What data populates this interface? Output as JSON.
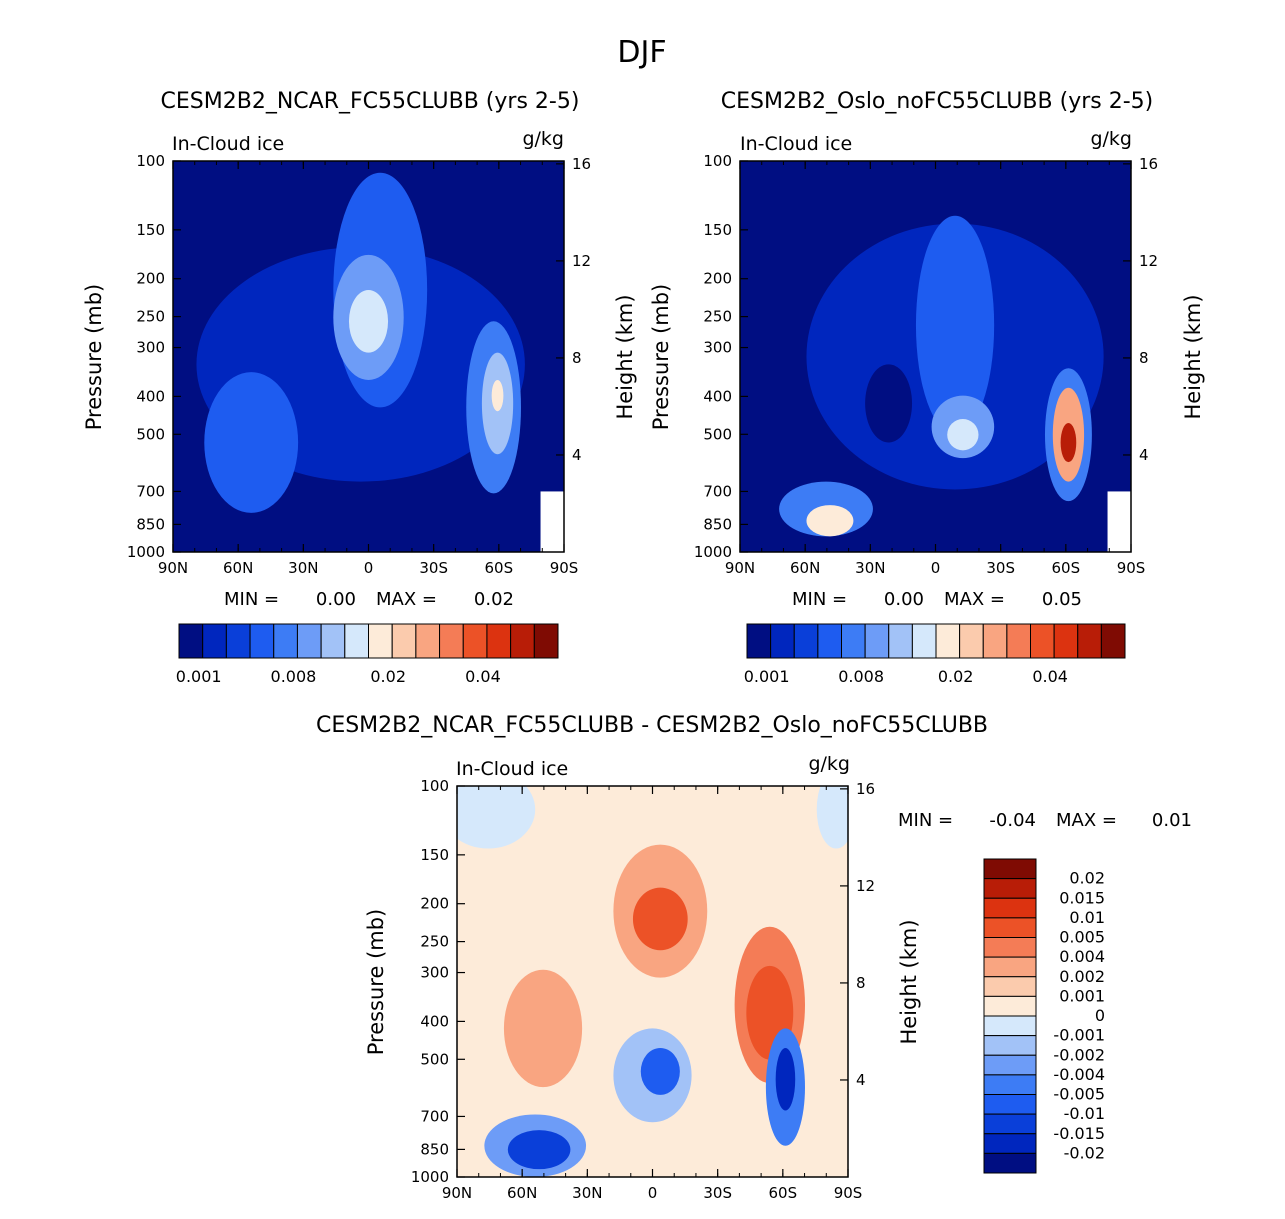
{
  "title": "DJF",
  "chart_data": [
    {
      "type": "heatmap",
      "title": "CESM2B2_NCAR_FC55CLUBB (yrs 2-5)",
      "variable": "In-Cloud ice",
      "units": "g/kg",
      "ylabel": "Pressure (mb)",
      "ylabel_right": "Height (km)",
      "x_ticks": [
        "90N",
        "60N",
        "30N",
        "0",
        "30S",
        "60S",
        "90S"
      ],
      "y_ticks": [
        100,
        150,
        200,
        250,
        300,
        400,
        500,
        700,
        850,
        1000
      ],
      "y_right_ticks": [
        16,
        12,
        8,
        4
      ],
      "stats": {
        "min_label": "MIN =",
        "min": "0.00",
        "max_label": "MAX =",
        "max": "0.02"
      },
      "colorbar": {
        "labels": [
          "0.001",
          "0.008",
          "0.02",
          "0.04"
        ],
        "colors": [
          "#000e82",
          "#0026be",
          "#0a3fd9",
          "#1e5cf0",
          "#3d7cf5",
          "#6d9cf7",
          "#a2c2f7",
          "#d5e8fb",
          "#fdebd9",
          "#fbcbad",
          "#f9a581",
          "#f47c56",
          "#ec5227",
          "#dc3310",
          "#b81d07",
          "#7f0b03"
        ]
      },
      "fields": {
        "background": "#000e82",
        "contours": [
          {
            "name": "outer",
            "cx": 0.48,
            "cy": 0.52,
            "rx": 0.42,
            "ry": 0.3,
            "color": "#0026be"
          },
          {
            "name": "trop-tower",
            "cx": 0.53,
            "cy": 0.33,
            "rx": 0.12,
            "ry": 0.3,
            "color": "#1e5cf0"
          },
          {
            "name": "south-left",
            "cx": 0.2,
            "cy": 0.72,
            "rx": 0.12,
            "ry": 0.18,
            "color": "#1e5cf0"
          },
          {
            "name": "trop-core",
            "cx": 0.5,
            "cy": 0.4,
            "rx": 0.09,
            "ry": 0.16,
            "color": "#6d9cf7"
          },
          {
            "name": "trop-inner",
            "cx": 0.5,
            "cy": 0.41,
            "rx": 0.05,
            "ry": 0.08,
            "color": "#d5e8fb"
          },
          {
            "name": "sh-midlat",
            "cx": 0.82,
            "cy": 0.63,
            "rx": 0.07,
            "ry": 0.22,
            "color": "#3d7cf5"
          },
          {
            "name": "sh-inner",
            "cx": 0.83,
            "cy": 0.62,
            "rx": 0.04,
            "ry": 0.13,
            "color": "#a2c2f7"
          },
          {
            "name": "sh-core",
            "cx": 0.83,
            "cy": 0.6,
            "rx": 0.015,
            "ry": 0.04,
            "color": "#fdebd9"
          }
        ]
      }
    },
    {
      "type": "heatmap",
      "title": "CESM2B2_Oslo_noFC55CLUBB (yrs 2-5)",
      "variable": "In-Cloud ice",
      "units": "g/kg",
      "ylabel": "Pressure (mb)",
      "ylabel_right": "Height (km)",
      "x_ticks": [
        "90N",
        "60N",
        "30N",
        "0",
        "30S",
        "60S",
        "90S"
      ],
      "y_ticks": [
        100,
        150,
        200,
        250,
        300,
        400,
        500,
        700,
        850,
        1000
      ],
      "y_right_ticks": [
        16,
        12,
        8,
        4
      ],
      "stats": {
        "min_label": "MIN =",
        "min": "0.00",
        "max_label": "MAX =",
        "max": "0.05"
      },
      "colorbar": {
        "labels": [
          "0.001",
          "0.008",
          "0.02",
          "0.04"
        ],
        "colors": [
          "#000e82",
          "#0026be",
          "#0a3fd9",
          "#1e5cf0",
          "#3d7cf5",
          "#6d9cf7",
          "#a2c2f7",
          "#d5e8fb",
          "#fdebd9",
          "#fbcbad",
          "#f9a581",
          "#f47c56",
          "#ec5227",
          "#dc3310",
          "#b81d07",
          "#7f0b03"
        ]
      },
      "fields": {
        "background": "#000e82",
        "contours": [
          {
            "name": "outer",
            "cx": 0.55,
            "cy": 0.5,
            "rx": 0.38,
            "ry": 0.34,
            "color": "#0026be"
          },
          {
            "name": "trop",
            "cx": 0.55,
            "cy": 0.42,
            "rx": 0.1,
            "ry": 0.28,
            "color": "#1e5cf0"
          },
          {
            "name": "trop-inner",
            "cx": 0.57,
            "cy": 0.68,
            "rx": 0.08,
            "ry": 0.08,
            "color": "#6d9cf7"
          },
          {
            "name": "trop-core",
            "cx": 0.57,
            "cy": 0.7,
            "rx": 0.04,
            "ry": 0.04,
            "color": "#d5e8fb"
          },
          {
            "name": "nh-low",
            "cx": 0.22,
            "cy": 0.89,
            "rx": 0.12,
            "ry": 0.07,
            "color": "#3d7cf5"
          },
          {
            "name": "nh-low-core",
            "cx": 0.23,
            "cy": 0.92,
            "rx": 0.06,
            "ry": 0.04,
            "color": "#fdebd9"
          },
          {
            "name": "hole",
            "cx": 0.38,
            "cy": 0.62,
            "rx": 0.06,
            "ry": 0.1,
            "color": "#000e82"
          },
          {
            "name": "sh-plume",
            "cx": 0.84,
            "cy": 0.7,
            "rx": 0.06,
            "ry": 0.17,
            "color": "#3d7cf5"
          },
          {
            "name": "sh-plume-2",
            "cx": 0.84,
            "cy": 0.7,
            "rx": 0.04,
            "ry": 0.12,
            "color": "#f9a581"
          },
          {
            "name": "sh-plume-core",
            "cx": 0.84,
            "cy": 0.72,
            "rx": 0.02,
            "ry": 0.05,
            "color": "#b81d07"
          }
        ]
      }
    },
    {
      "type": "heatmap",
      "title": "CESM2B2_NCAR_FC55CLUBB - CESM2B2_Oslo_noFC55CLUBB",
      "variable": "In-Cloud ice",
      "units": "g/kg",
      "ylabel": "Pressure (mb)",
      "ylabel_right": "Height (km)",
      "x_ticks": [
        "90N",
        "60N",
        "30N",
        "0",
        "30S",
        "60S",
        "90S"
      ],
      "y_ticks": [
        100,
        150,
        200,
        250,
        300,
        400,
        500,
        700,
        850,
        1000
      ],
      "y_right_ticks": [
        16,
        12,
        8,
        4
      ],
      "stats": {
        "min_label": "MIN =",
        "min": "-0.04",
        "max_label": "MAX =",
        "max": "0.01"
      },
      "colorbar": {
        "labels": [
          "0.02",
          "0.015",
          "0.01",
          "0.005",
          "0.004",
          "0.002",
          "0.001",
          "0",
          "-0.001",
          "-0.002",
          "-0.004",
          "-0.005",
          "-0.01",
          "-0.015",
          "-0.02"
        ],
        "colors": [
          "#7f0b03",
          "#b81d07",
          "#dc3310",
          "#ec5227",
          "#f47c56",
          "#f9a581",
          "#fbcbad",
          "#fdebd9",
          "#d5e8fb",
          "#a2c2f7",
          "#6d9cf7",
          "#3d7cf5",
          "#1e5cf0",
          "#0a3fd9",
          "#0026be",
          "#000e82"
        ]
      },
      "fields": {
        "background": "#fdebd9",
        "contours": [
          {
            "name": "nw-corner",
            "cx": 0.08,
            "cy": 0.06,
            "rx": 0.12,
            "ry": 0.1,
            "color": "#d5e8fb"
          },
          {
            "name": "ne-corner",
            "cx": 0.97,
            "cy": 0.06,
            "rx": 0.05,
            "ry": 0.1,
            "color": "#d5e8fb"
          },
          {
            "name": "trop-pos",
            "cx": 0.52,
            "cy": 0.32,
            "rx": 0.12,
            "ry": 0.17,
            "color": "#f9a581"
          },
          {
            "name": "trop-pos-core",
            "cx": 0.52,
            "cy": 0.34,
            "rx": 0.07,
            "ry": 0.08,
            "color": "#ec5227"
          },
          {
            "name": "nh-pos",
            "cx": 0.22,
            "cy": 0.62,
            "rx": 0.1,
            "ry": 0.15,
            "color": "#f9a581"
          },
          {
            "name": "sh-pos",
            "cx": 0.8,
            "cy": 0.56,
            "rx": 0.09,
            "ry": 0.2,
            "color": "#f47c56"
          },
          {
            "name": "sh-pos-core",
            "cx": 0.8,
            "cy": 0.58,
            "rx": 0.06,
            "ry": 0.12,
            "color": "#ec5227"
          },
          {
            "name": "trop-neg",
            "cx": 0.5,
            "cy": 0.74,
            "rx": 0.1,
            "ry": 0.12,
            "color": "#a2c2f7"
          },
          {
            "name": "trop-neg-core",
            "cx": 0.52,
            "cy": 0.73,
            "rx": 0.05,
            "ry": 0.06,
            "color": "#1e5cf0"
          },
          {
            "name": "nh-low-neg",
            "cx": 0.2,
            "cy": 0.92,
            "rx": 0.13,
            "ry": 0.08,
            "color": "#6d9cf7"
          },
          {
            "name": "nh-low-neg-core",
            "cx": 0.21,
            "cy": 0.93,
            "rx": 0.08,
            "ry": 0.05,
            "color": "#0a3fd9"
          },
          {
            "name": "sh-neg",
            "cx": 0.84,
            "cy": 0.77,
            "rx": 0.05,
            "ry": 0.15,
            "color": "#3d7cf5"
          },
          {
            "name": "sh-neg-core",
            "cx": 0.84,
            "cy": 0.75,
            "rx": 0.025,
            "ry": 0.08,
            "color": "#0026be"
          }
        ]
      }
    }
  ]
}
